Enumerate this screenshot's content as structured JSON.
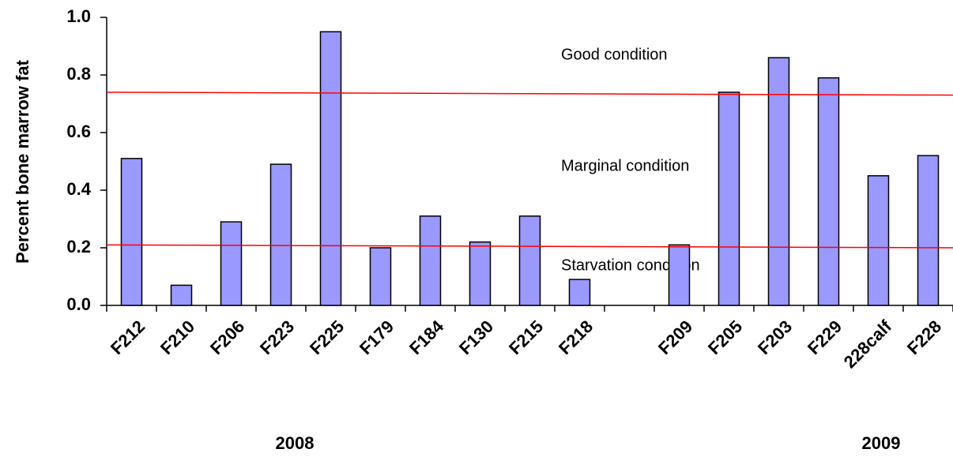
{
  "chart_data": {
    "type": "bar",
    "y_label": "Percent bone marrow fat",
    "categories": [
      "F212",
      "F210",
      "F206",
      "F223",
      "F225",
      "F179",
      "F184",
      "F130",
      "F215",
      "F218",
      null,
      "F209",
      "F205",
      "F203",
      "F229",
      "228calf",
      "F228"
    ],
    "values": [
      0.51,
      0.07,
      0.29,
      0.49,
      0.95,
      0.2,
      0.31,
      0.22,
      0.31,
      0.09,
      null,
      0.21,
      0.74,
      0.86,
      0.79,
      0.45,
      0.52
    ],
    "color": "#9999ff",
    "ylim": [
      0,
      1
    ],
    "yticks": [
      {
        "value": 0,
        "label": "0.0"
      },
      {
        "value": 0.2,
        "label": "0.2"
      },
      {
        "value": 0.4,
        "label": "0.4"
      },
      {
        "value": 0.6,
        "label": "0.6"
      },
      {
        "value": 0.8,
        "label": "0.8"
      },
      {
        "value": 1,
        "label": "1.0"
      }
    ],
    "groups": [
      "2008",
      "2009"
    ],
    "threshold_lines": [
      {
        "start": 0.74,
        "end": 0.73,
        "color": "#ff0000"
      },
      {
        "start": 0.21,
        "end": 0.2,
        "color": "#ff0000"
      }
    ],
    "annotations": [
      "Good condition",
      "Marginal condition",
      "Starvation condition"
    ]
  }
}
